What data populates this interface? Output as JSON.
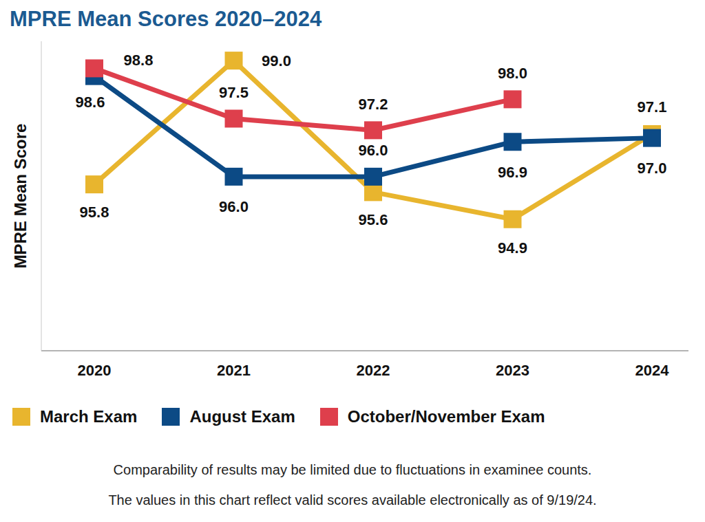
{
  "chart_data": {
    "type": "line",
    "title": "MPRE Mean Scores 2020–2024",
    "ylabel": "MPRE Mean Score",
    "categories": [
      "2020",
      "2021",
      "2022",
      "2023",
      "2024"
    ],
    "series": [
      {
        "name": "March Exam",
        "color": "#e8b52e",
        "values": [
          95.8,
          99.0,
          95.6,
          94.9,
          97.1
        ],
        "value_labels": [
          "95.8",
          "99.0",
          "95.6",
          "94.9",
          "97.1"
        ]
      },
      {
        "name": "August Exam",
        "color": "#0c4a85",
        "values": [
          98.6,
          96.0,
          96.0,
          96.9,
          97.0
        ],
        "value_labels": [
          "98.6",
          "96.0",
          "96.0",
          "96.9",
          "97.0"
        ]
      },
      {
        "name": "October/November Exam",
        "color": "#de3f4c",
        "values": [
          98.8,
          97.5,
          97.2,
          98.0,
          null
        ],
        "value_labels": [
          "98.8",
          "97.5",
          "97.2",
          "98.0",
          null
        ]
      }
    ],
    "ylim": [
      91.5,
      99.5
    ],
    "tick_labels": "x",
    "grid": false,
    "legend": "bottom",
    "data_labels": true,
    "marker": "square",
    "line_style": "solid",
    "annotations": [
      "Comparability of results may be limited due to fluctuations in examinee counts.",
      "The values in this chart reflect valid scores available electronically as of 9/19/24."
    ]
  }
}
